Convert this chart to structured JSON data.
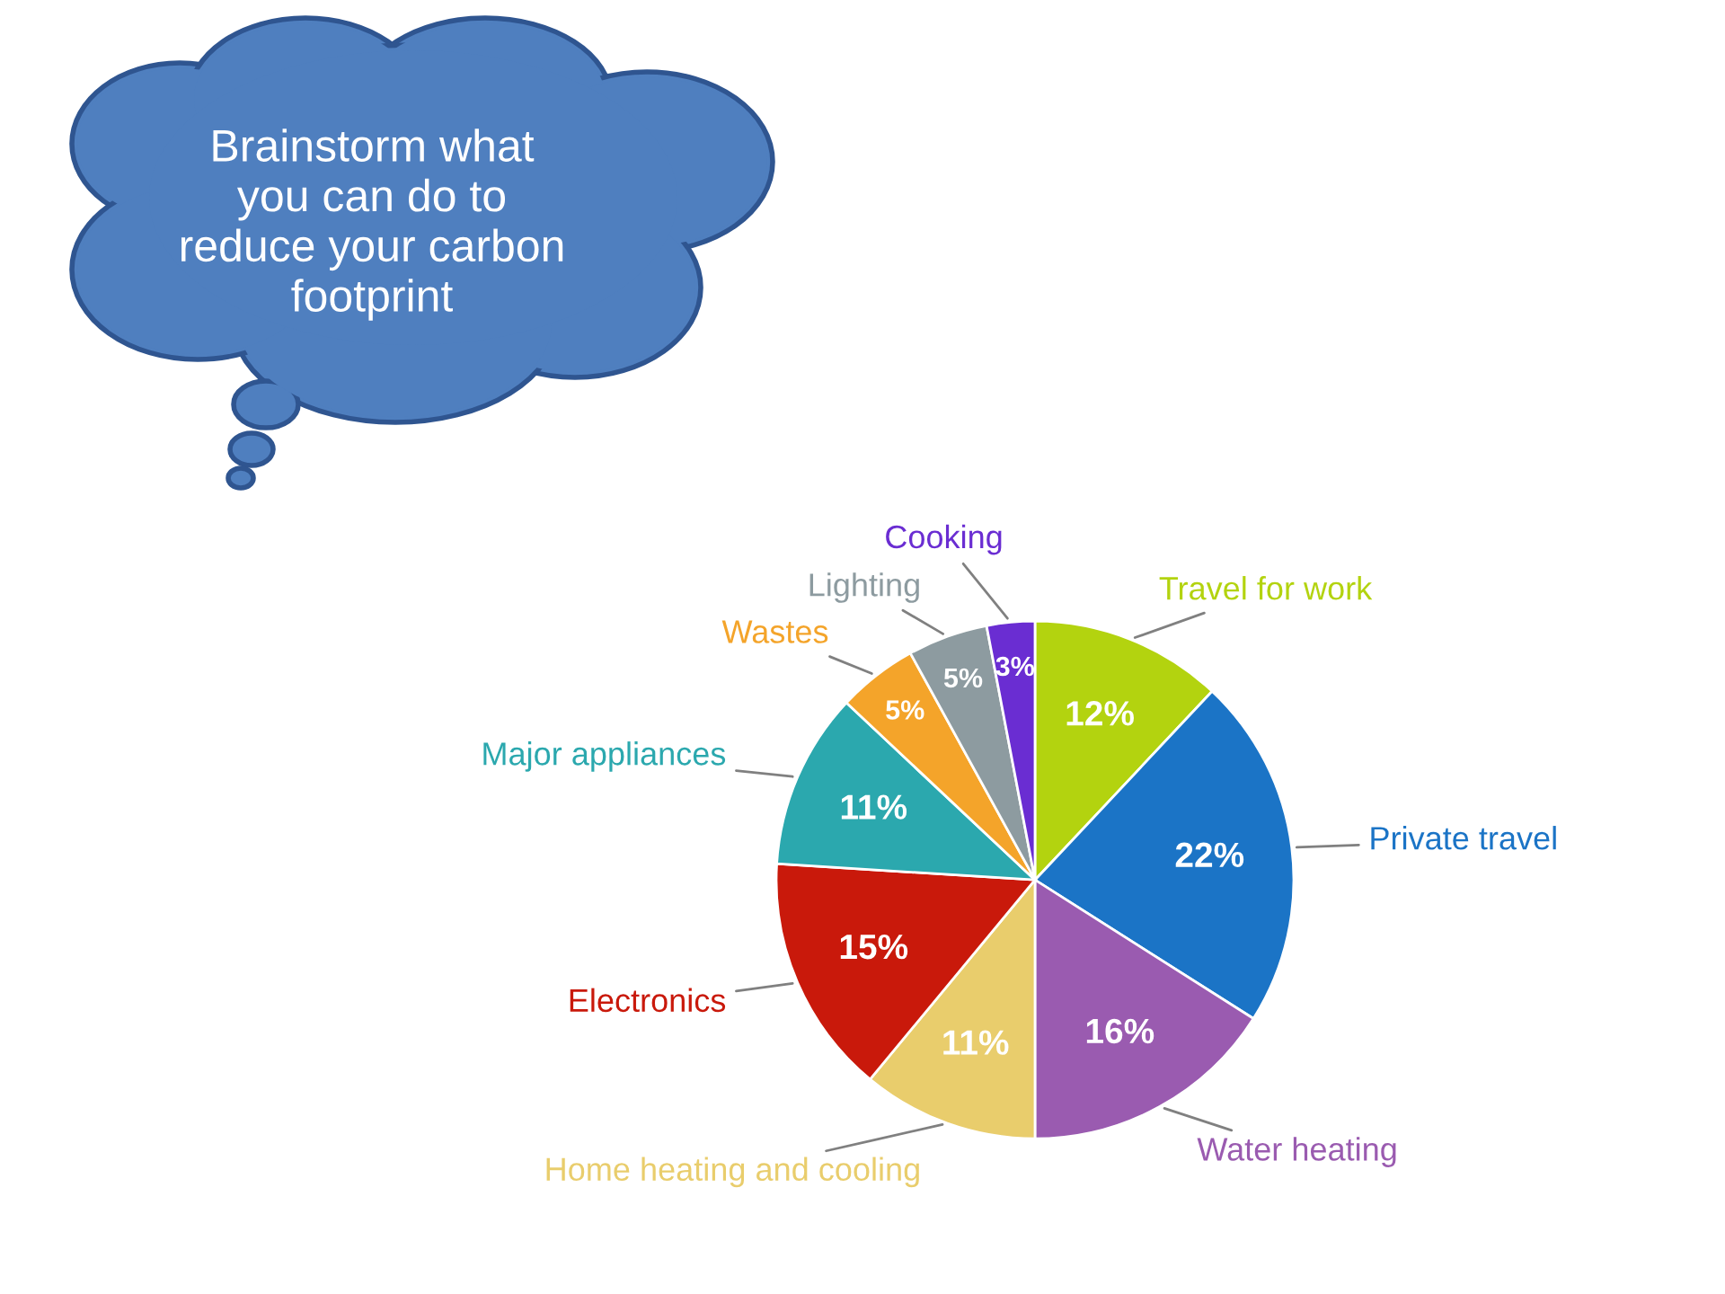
{
  "chart_data": {
    "type": "pie",
    "categories": [
      "Travel for work",
      "Private travel",
      "Water heating",
      "Home heating and cooling",
      "Electronics",
      "Major appliances",
      "Wastes",
      "Lighting",
      "Cooking"
    ],
    "values": [
      12,
      22,
      16,
      11,
      15,
      11,
      5,
      5,
      3
    ],
    "value_labels": [
      "12%",
      "22%",
      "16%",
      "11%",
      "15%",
      "11%",
      "5%",
      "5%",
      "3%"
    ],
    "colors": [
      "#b3d30f",
      "#1b74c6",
      "#9a5bb0",
      "#e9cd6c",
      "#c9190b",
      "#2ba8ae",
      "#f4a42a",
      "#8d9ba0",
      "#6a2dd2"
    ],
    "annotations": [
      "Brainstorm what\nyou can do to\nreduce your carbon\nfootprint"
    ],
    "legend": false
  }
}
